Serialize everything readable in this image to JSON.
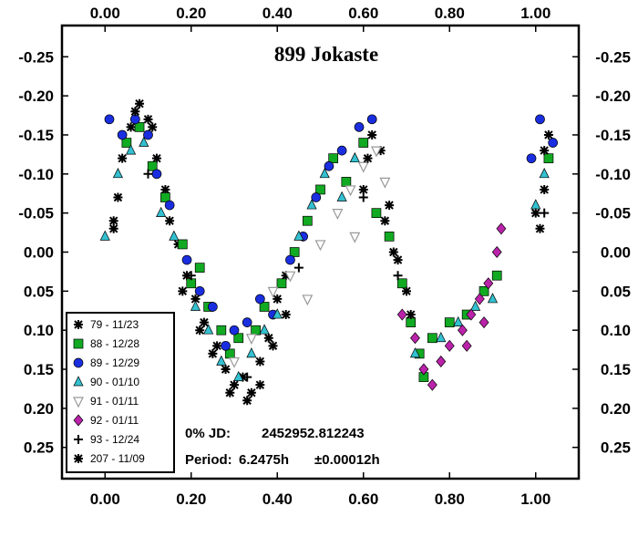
{
  "chart_data": {
    "type": "scatter",
    "title": "899 Jokaste",
    "xlim": [
      -0.1,
      1.1
    ],
    "ylim": [
      -0.29,
      0.29
    ],
    "y_inverted": true,
    "x_ticks": [
      "0.00",
      "0.20",
      "0.40",
      "0.60",
      "0.80",
      "1.00"
    ],
    "x_tick_values": [
      0.0,
      0.2,
      0.4,
      0.6,
      0.8,
      1.0
    ],
    "y_ticks": [
      "-0.25",
      "-0.20",
      "-0.15",
      "-0.10",
      "-0.05",
      "0.00",
      "0.05",
      "0.10",
      "0.15",
      "0.20",
      "0.25"
    ],
    "y_tick_values": [
      -0.25,
      -0.2,
      -0.15,
      -0.1,
      -0.05,
      0.0,
      0.05,
      0.1,
      0.15,
      0.2,
      0.25
    ],
    "legend_placement": "bottom-left",
    "series": [
      {
        "name": "79 - 11/23",
        "marker": "asterisk",
        "color": "#000000",
        "points": [
          [
            0.02,
            -0.04
          ],
          [
            0.02,
            -0.03
          ],
          [
            0.04,
            -0.12
          ],
          [
            0.06,
            -0.16
          ],
          [
            0.08,
            -0.19
          ],
          [
            0.1,
            -0.17
          ],
          [
            0.12,
            -0.12
          ],
          [
            0.14,
            -0.08
          ],
          [
            0.17,
            -0.01
          ],
          [
            0.19,
            0.03
          ],
          [
            0.21,
            0.06
          ],
          [
            0.23,
            0.09
          ],
          [
            0.26,
            0.12
          ],
          [
            0.28,
            0.15
          ],
          [
            0.3,
            0.17
          ],
          [
            0.32,
            0.16
          ],
          [
            0.34,
            0.18
          ],
          [
            0.36,
            0.14
          ],
          [
            0.38,
            0.11
          ],
          [
            0.4,
            0.06
          ],
          [
            0.42,
            0.03
          ],
          [
            0.6,
            -0.08
          ],
          [
            0.62,
            -0.15
          ],
          [
            0.64,
            -0.13
          ],
          [
            0.66,
            -0.06
          ],
          [
            0.68,
            0.01
          ],
          [
            0.7,
            0.05
          ],
          [
            1.01,
            -0.03
          ],
          [
            1.02,
            -0.08
          ],
          [
            1.03,
            -0.15
          ]
        ]
      },
      {
        "name": "88 - 12/28",
        "marker": "square",
        "color": "#11aa22",
        "points": [
          [
            0.05,
            -0.14
          ],
          [
            0.08,
            -0.16
          ],
          [
            0.11,
            -0.11
          ],
          [
            0.14,
            -0.07
          ],
          [
            0.18,
            -0.01
          ],
          [
            0.2,
            0.04
          ],
          [
            0.22,
            0.02
          ],
          [
            0.24,
            0.07
          ],
          [
            0.27,
            0.1
          ],
          [
            0.29,
            0.13
          ],
          [
            0.31,
            0.11
          ],
          [
            0.35,
            0.1
          ],
          [
            0.37,
            0.07
          ],
          [
            0.41,
            0.04
          ],
          [
            0.44,
            0.0
          ],
          [
            0.47,
            -0.04
          ],
          [
            0.5,
            -0.08
          ],
          [
            0.53,
            -0.12
          ],
          [
            0.56,
            -0.09
          ],
          [
            0.6,
            -0.14
          ],
          [
            0.63,
            -0.05
          ],
          [
            0.66,
            -0.02
          ],
          [
            0.69,
            0.04
          ],
          [
            0.71,
            0.09
          ],
          [
            0.73,
            0.13
          ],
          [
            0.74,
            0.16
          ],
          [
            0.76,
            0.11
          ],
          [
            0.8,
            0.09
          ],
          [
            0.84,
            0.08
          ],
          [
            0.88,
            0.05
          ],
          [
            0.91,
            0.03
          ],
          [
            1.03,
            -0.12
          ]
        ]
      },
      {
        "name": "89 - 12/29",
        "marker": "circle",
        "color": "#1a2ee0",
        "points": [
          [
            0.01,
            -0.17
          ],
          [
            0.04,
            -0.15
          ],
          [
            0.07,
            -0.17
          ],
          [
            0.1,
            -0.15
          ],
          [
            0.12,
            -0.1
          ],
          [
            0.15,
            -0.06
          ],
          [
            0.19,
            0.01
          ],
          [
            0.22,
            0.05
          ],
          [
            0.25,
            0.07
          ],
          [
            0.28,
            0.12
          ],
          [
            0.3,
            0.1
          ],
          [
            0.33,
            0.09
          ],
          [
            0.36,
            0.06
          ],
          [
            0.39,
            0.08
          ],
          [
            0.43,
            0.01
          ],
          [
            0.46,
            -0.02
          ],
          [
            0.49,
            -0.07
          ],
          [
            0.52,
            -0.11
          ],
          [
            0.55,
            -0.13
          ],
          [
            0.59,
            -0.16
          ],
          [
            0.62,
            -0.17
          ],
          [
            0.99,
            -0.12
          ],
          [
            1.01,
            -0.17
          ],
          [
            1.04,
            -0.14
          ]
        ]
      },
      {
        "name": "90 - 01/10",
        "marker": "triangle-up",
        "color": "#33c0d0",
        "points": [
          [
            0.0,
            -0.02
          ],
          [
            0.03,
            -0.1
          ],
          [
            0.06,
            -0.13
          ],
          [
            0.09,
            -0.14
          ],
          [
            0.13,
            -0.05
          ],
          [
            0.16,
            -0.02
          ],
          [
            0.21,
            0.07
          ],
          [
            0.24,
            0.1
          ],
          [
            0.27,
            0.14
          ],
          [
            0.31,
            0.16
          ],
          [
            0.34,
            0.13
          ],
          [
            0.37,
            0.1
          ],
          [
            0.4,
            0.08
          ],
          [
            0.45,
            -0.02
          ],
          [
            0.48,
            -0.06
          ],
          [
            0.51,
            -0.1
          ],
          [
            0.55,
            -0.07
          ],
          [
            0.58,
            -0.12
          ],
          [
            0.72,
            0.13
          ],
          [
            0.78,
            0.11
          ],
          [
            0.82,
            0.09
          ],
          [
            0.86,
            0.07
          ],
          [
            0.9,
            0.06
          ],
          [
            1.0,
            -0.06
          ],
          [
            1.02,
            -0.1
          ]
        ]
      },
      {
        "name": "91 - 01/11",
        "marker": "triangle-down",
        "color": "#999999",
        "points": [
          [
            0.3,
            0.14
          ],
          [
            0.34,
            0.11
          ],
          [
            0.39,
            0.05
          ],
          [
            0.43,
            0.03
          ],
          [
            0.47,
            0.06
          ],
          [
            0.5,
            -0.01
          ],
          [
            0.54,
            -0.05
          ],
          [
            0.57,
            -0.08
          ],
          [
            0.6,
            -0.11
          ],
          [
            0.63,
            -0.13
          ],
          [
            0.65,
            -0.09
          ],
          [
            0.58,
            -0.02
          ]
        ]
      },
      {
        "name": "92 - 01/11",
        "marker": "diamond",
        "color": "#bb22aa",
        "points": [
          [
            0.69,
            0.08
          ],
          [
            0.72,
            0.11
          ],
          [
            0.74,
            0.15
          ],
          [
            0.76,
            0.17
          ],
          [
            0.78,
            0.14
          ],
          [
            0.8,
            0.12
          ],
          [
            0.83,
            0.1
          ],
          [
            0.85,
            0.08
          ],
          [
            0.87,
            0.06
          ],
          [
            0.89,
            0.04
          ],
          [
            0.91,
            0.0
          ],
          [
            0.92,
            -0.03
          ],
          [
            0.88,
            0.09
          ],
          [
            0.84,
            0.12
          ]
        ]
      },
      {
        "name": "93 - 12/24",
        "marker": "plus",
        "color": "#000000",
        "points": [
          [
            0.1,
            -0.1
          ],
          [
            0.2,
            0.03
          ],
          [
            0.33,
            0.16
          ],
          [
            0.45,
            0.02
          ],
          [
            0.6,
            -0.07
          ],
          [
            0.68,
            0.03
          ],
          [
            1.02,
            -0.05
          ]
        ]
      },
      {
        "name": "207 - 11/09",
        "marker": "asterisk",
        "color": "#000000",
        "points": [
          [
            0.03,
            -0.07
          ],
          [
            0.07,
            -0.18
          ],
          [
            0.11,
            -0.16
          ],
          [
            0.15,
            -0.04
          ],
          [
            0.18,
            0.05
          ],
          [
            0.22,
            0.1
          ],
          [
            0.25,
            0.13
          ],
          [
            0.29,
            0.18
          ],
          [
            0.33,
            0.19
          ],
          [
            0.36,
            0.17
          ],
          [
            0.39,
            0.12
          ],
          [
            0.42,
            0.08
          ],
          [
            0.61,
            -0.12
          ],
          [
            0.65,
            -0.04
          ],
          [
            0.67,
            0.0
          ],
          [
            0.71,
            0.08
          ],
          [
            1.0,
            -0.05
          ],
          [
            1.02,
            -0.13
          ]
        ]
      }
    ],
    "info": {
      "jd_label": "0% JD:",
      "jd_value": "2452952.812243",
      "period_label": "Period:",
      "period_value": "6.2475h",
      "period_error": "±0.00012h"
    }
  }
}
